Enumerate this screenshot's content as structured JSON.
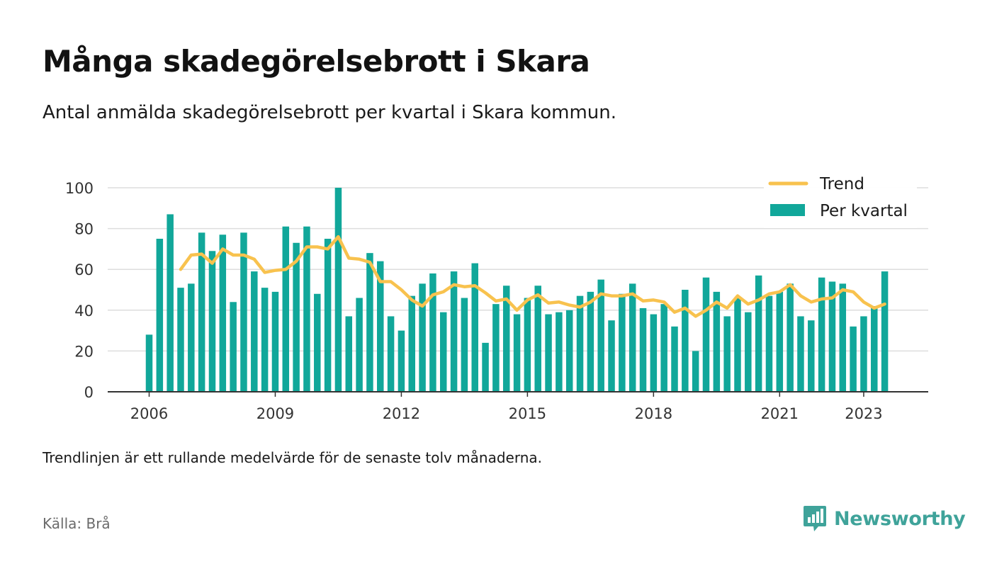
{
  "title": "Många skadegörelsebrott i Skara",
  "subtitle": "Antal anmälda skadegörelsebrott per kvartal i Skara kommun.",
  "note": "Trendlinjen är ett rullande medelvärde för de senaste tolv månaderna.",
  "source": "Källa: Brå",
  "brand": "Newsworthy",
  "brand_icon": "newsworthy-chart-bubble-icon",
  "colors": {
    "bar": "#11a79a",
    "trend": "#f8c24e",
    "grid": "#dddddd",
    "axis": "#333333",
    "brand": "#3fa39a"
  },
  "chart_data": {
    "type": "bar",
    "title": "Många skadegörelsebrott i Skara",
    "subtitle": "Antal anmälda skadegörelsebrott per kvartal i Skara kommun.",
    "xlabel": "",
    "ylabel": "",
    "ylim": [
      0,
      100
    ],
    "yticks": [
      0,
      20,
      40,
      60,
      80,
      100
    ],
    "xticks": [
      {
        "label": "2006",
        "year": 2006
      },
      {
        "label": "2009",
        "year": 2009
      },
      {
        "label": "2012",
        "year": 2012
      },
      {
        "label": "2015",
        "year": 2015
      },
      {
        "label": "2018",
        "year": 2018
      },
      {
        "label": "2021",
        "year": 2021
      },
      {
        "label": "2023",
        "year": 2023
      }
    ],
    "grid": true,
    "legend_position": "top-right",
    "first_quarter": "2006 Q1",
    "series": [
      {
        "name": "Per kvartal",
        "type": "bar",
        "values": [
          28,
          75,
          87,
          51,
          53,
          78,
          69,
          77,
          44,
          78,
          59,
          51,
          49,
          81,
          73,
          81,
          48,
          75,
          100,
          37,
          46,
          68,
          64,
          37,
          30,
          47,
          53,
          58,
          39,
          59,
          46,
          63,
          24,
          43,
          52,
          38,
          46,
          52,
          38,
          39,
          40,
          47,
          49,
          55,
          35,
          48,
          53,
          41,
          38,
          43,
          32,
          50,
          20,
          56,
          49,
          37,
          46,
          39,
          57,
          47,
          49,
          53,
          37,
          35,
          56,
          54,
          53,
          32,
          37,
          42,
          59
        ]
      },
      {
        "name": "Trend",
        "type": "line",
        "values": [
          null,
          null,
          null,
          60,
          67,
          67.5,
          63,
          70,
          67,
          67,
          65,
          58.5,
          59.5,
          60,
          64,
          71,
          71,
          70,
          76,
          65.5,
          65,
          63.5,
          54,
          54,
          50,
          45,
          42,
          47.5,
          49,
          52.5,
          51.5,
          52,
          48.5,
          44.5,
          45.5,
          40,
          45,
          47.5,
          43.5,
          44,
          42.5,
          41.5,
          44,
          48,
          47,
          47,
          48,
          44.5,
          45,
          44,
          39,
          41,
          37,
          40,
          44,
          41,
          47,
          43,
          45,
          48,
          49,
          52.5,
          47,
          44,
          45.5,
          46,
          50,
          49,
          44,
          41,
          43
        ]
      }
    ]
  }
}
